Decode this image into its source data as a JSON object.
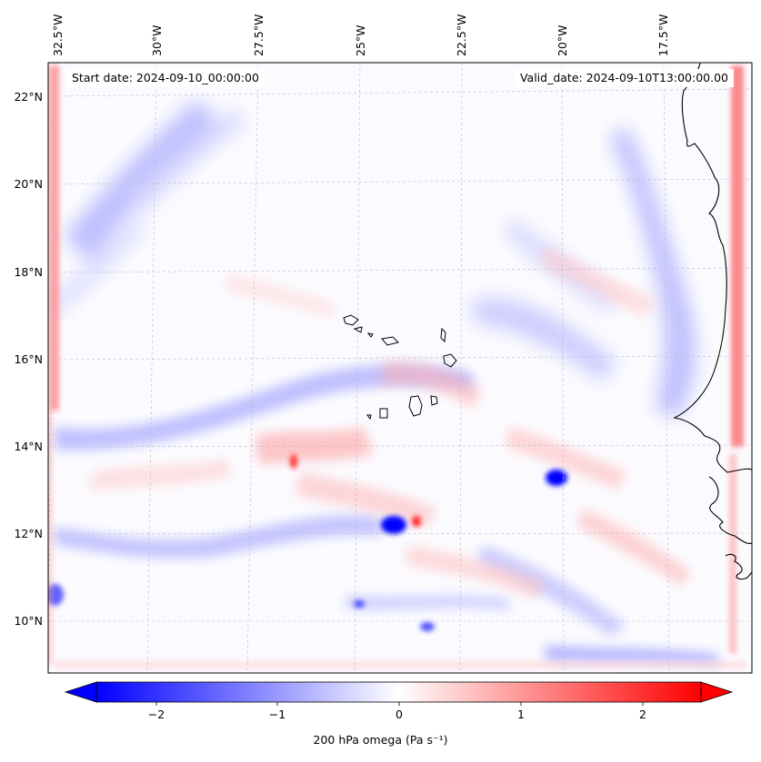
{
  "map": {
    "start_label": "Start date: 2024-09-10_00:00:00",
    "valid_label": "Valid_date: 2024-09-10T13:00:00.00",
    "lon_ticks": [
      "32.5°W",
      "30°W",
      "27.5°W",
      "25°W",
      "22.5°W",
      "20°W",
      "17.5°W"
    ],
    "lat_ticks": [
      "22°N",
      "20°N",
      "18°N",
      "16°N",
      "14°N",
      "12°N",
      "10°N"
    ],
    "extent": {
      "lon_min": -33.0,
      "lon_max": -15.5,
      "lat_min": 8.8,
      "lat_max": 22.8
    },
    "field": "200 hPa omega"
  },
  "colorbar": {
    "label": "200 hPa omega (Pa s⁻¹)",
    "ticks": [
      "−2",
      "−1",
      "0",
      "1",
      "2"
    ],
    "tick_values": [
      -2,
      -1,
      0,
      1,
      2
    ],
    "range": [
      -2.7,
      2.7
    ],
    "extend": "both",
    "colors": {
      "negative": "#0000ff",
      "zero": "#ffffff",
      "positive": "#ff0000"
    }
  }
}
